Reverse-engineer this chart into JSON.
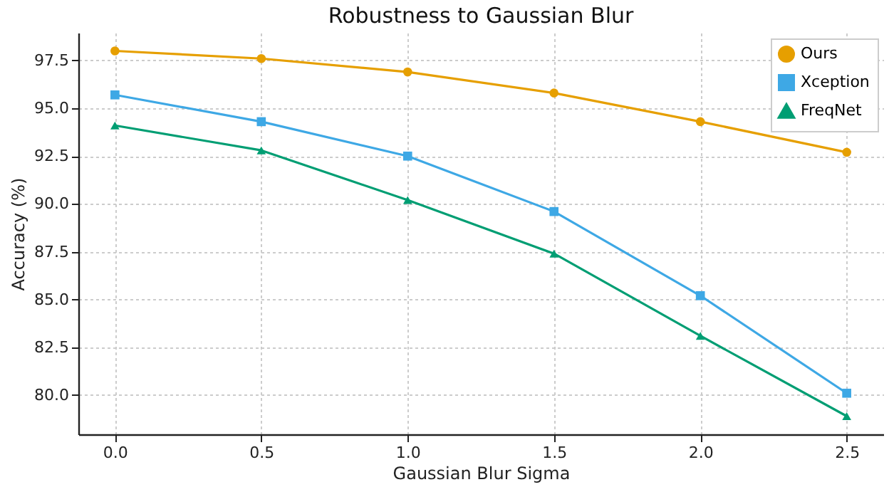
{
  "chart_data": {
    "type": "line",
    "title": "Robustness to Gaussian Blur",
    "xlabel": "Gaussian Blur Sigma",
    "ylabel": "Accuracy (%)",
    "x": [
      0.0,
      0.5,
      1.0,
      1.5,
      2.0,
      2.5
    ],
    "series": [
      {
        "name": "Ours",
        "color": "#e69f00",
        "marker": "circle",
        "values": [
          98.0,
          97.6,
          96.9,
          95.8,
          94.3,
          92.7
        ]
      },
      {
        "name": "Xception",
        "color": "#3ea8e5",
        "marker": "square",
        "values": [
          95.7,
          94.3,
          92.5,
          89.6,
          85.2,
          80.1
        ]
      },
      {
        "name": "FreqNet",
        "color": "#009e73",
        "marker": "triangle",
        "values": [
          94.1,
          92.8,
          90.2,
          87.4,
          83.1,
          78.9
        ]
      }
    ],
    "xlim": [
      -0.125,
      2.625
    ],
    "xticks": [
      {
        "value": 0,
        "label": "0.0"
      },
      {
        "value": 0.5,
        "label": "0.5"
      },
      {
        "value": 1,
        "label": "1.0"
      },
      {
        "value": 1.5,
        "label": "1.5"
      },
      {
        "value": 2,
        "label": "2.0"
      },
      {
        "value": 2.5,
        "label": "2.5"
      }
    ],
    "ylim": [
      77.95,
      98.95
    ],
    "yticks": [
      {
        "value": 80,
        "label": "80.0"
      },
      {
        "value": 82.5,
        "label": "82.5"
      },
      {
        "value": 85,
        "label": "85.0"
      },
      {
        "value": 87.5,
        "label": "87.5"
      },
      {
        "value": 90,
        "label": "90.0"
      },
      {
        "value": 92.5,
        "label": "92.5"
      },
      {
        "value": 95,
        "label": "95.0"
      },
      {
        "value": 97.5,
        "label": "97.5"
      }
    ],
    "grid": true,
    "legend": "top right",
    "line_style": "solid"
  }
}
